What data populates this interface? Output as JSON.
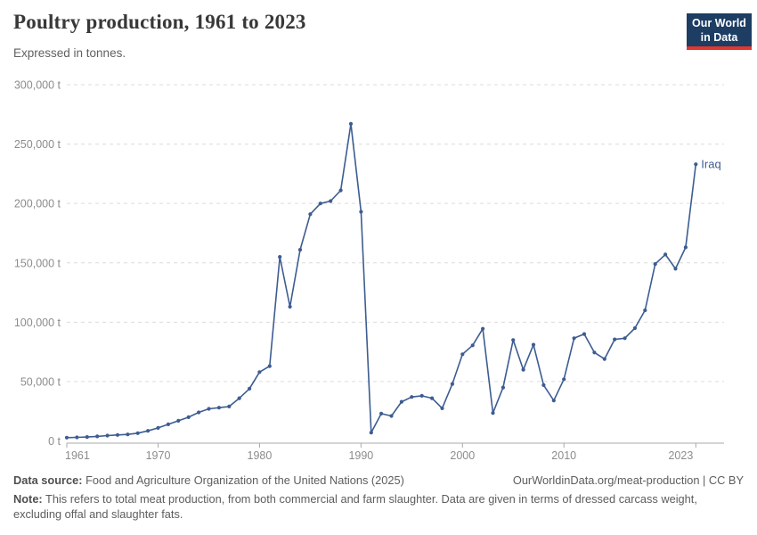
{
  "header": {
    "title": "Poultry production, 1961 to 2023",
    "subtitle": "Expressed in tonnes.",
    "logo": {
      "line1": "Our World",
      "line2": "in Data"
    }
  },
  "footer": {
    "datasource_label": "Data source:",
    "datasource_text": " Food and Agriculture Organization of the United Nations (2025)",
    "link_text": "OurWorldinData.org/meat-production | CC BY",
    "note_label": "Note:",
    "note_text": " This refers to total meat production, from both commercial and farm slaughter. Data are given in terms of dressed carcass weight, excluding offal and slaughter fats."
  },
  "colors": {
    "line": "#3d5c91",
    "grid": "#dcdcdc",
    "axis": "#a8a8a8",
    "tick_text": "#8c8c8c",
    "logo_bg": "#1d3d63",
    "logo_red": "#e0372e"
  },
  "chart_data": {
    "type": "line",
    "title": "Poultry production, 1961 to 2023",
    "subtitle": "Expressed in tonnes.",
    "xlabel": "",
    "ylabel": "tonnes",
    "ylim": [
      0,
      300000
    ],
    "grid": "horizontal-dashed",
    "legend_position": "end-of-line-label",
    "xticks": [
      1961,
      1970,
      1980,
      1990,
      2000,
      2010,
      2023
    ],
    "xtick_labels": [
      "1961",
      "1970",
      "1980",
      "1990",
      "2000",
      "2010",
      "2023"
    ],
    "ytick_values": [
      0,
      50000,
      100000,
      150000,
      200000,
      250000,
      300000
    ],
    "ytick_labels": [
      "0 t",
      "50,000 t",
      "100,000 t",
      "150,000 t",
      "200,000 t",
      "250,000 t",
      "300,000 t"
    ],
    "series": [
      {
        "name": "Iraq",
        "color": "#3d5c91",
        "years": [
          1961,
          1962,
          1963,
          1964,
          1965,
          1966,
          1967,
          1968,
          1969,
          1970,
          1971,
          1972,
          1973,
          1974,
          1975,
          1976,
          1977,
          1978,
          1979,
          1980,
          1981,
          1982,
          1983,
          1984,
          1985,
          1986,
          1987,
          1988,
          1989,
          1990,
          1991,
          1992,
          1993,
          1994,
          1995,
          1996,
          1997,
          1998,
          1999,
          2000,
          2001,
          2002,
          2003,
          2004,
          2005,
          2006,
          2007,
          2008,
          2009,
          2010,
          2011,
          2012,
          2013,
          2014,
          2015,
          2016,
          2017,
          2018,
          2019,
          2020,
          2021,
          2022,
          2023
        ],
        "values": [
          2800,
          3000,
          3300,
          3800,
          4500,
          5000,
          5500,
          6500,
          8500,
          11000,
          14000,
          17000,
          20000,
          24000,
          27000,
          28000,
          29000,
          36000,
          44000,
          58000,
          63000,
          155000,
          113000,
          161000,
          191000,
          200000,
          202000,
          211000,
          267000,
          193000,
          7000,
          23000,
          21000,
          33000,
          37000,
          38000,
          36000,
          27500,
          48000,
          73000,
          80500,
          94500,
          23500,
          45000,
          85000,
          60000,
          81000,
          47000,
          34000,
          52000,
          86500,
          90000,
          74500,
          69000,
          85500,
          86500,
          95000,
          110000,
          149000,
          157000,
          145000,
          163000,
          233000
        ]
      }
    ]
  }
}
